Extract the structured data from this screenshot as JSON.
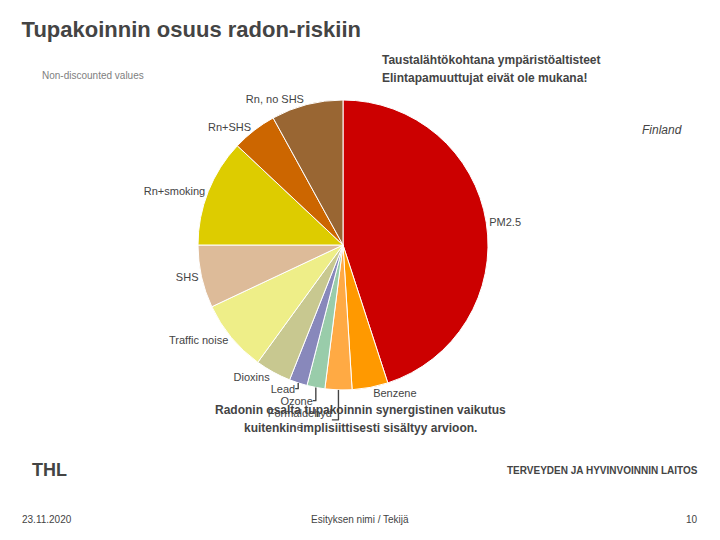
{
  "chart_data": {
    "type": "pie",
    "title": "Tupakoinnin osuus radon-riskiin",
    "subtitle": [
      "Taustalähtökohtana ympäristöaltisteet",
      "Elintapamuuttujat eivät ole mukana!"
    ],
    "categories": [
      "PM2.5",
      "Benzene",
      "Formaldehyd\ne",
      "Ozone",
      "Lead",
      "Dioxins",
      "Traffic noise",
      "SHS",
      "Rn+smoking",
      "Rn+SHS",
      "Rn, no SHS"
    ],
    "values": [
      45,
      4,
      3,
      2,
      2,
      4,
      8,
      7,
      12,
      5,
      8
    ],
    "colors": [
      "#CC0000",
      "#FF9900",
      "#FFAA44",
      "#99CCAA",
      "#8888BB",
      "#C8C890",
      "#EEEE88",
      "#DDBB99",
      "#DDCC00",
      "#CC6600",
      "#996633"
    ],
    "annotations": [
      "Non-discounted values",
      "Finland",
      "Radonin osalta tupakoinnin synergistinen vaikutus",
      "kuitenkin implisiittisesti sisältyy arvioon.",
      "THL",
      "TERVEYDEN JA HYVINVOINNIN LAITOS",
      "23.11.2020",
      "Esityksen nimi / Tekijä",
      "10"
    ]
  }
}
